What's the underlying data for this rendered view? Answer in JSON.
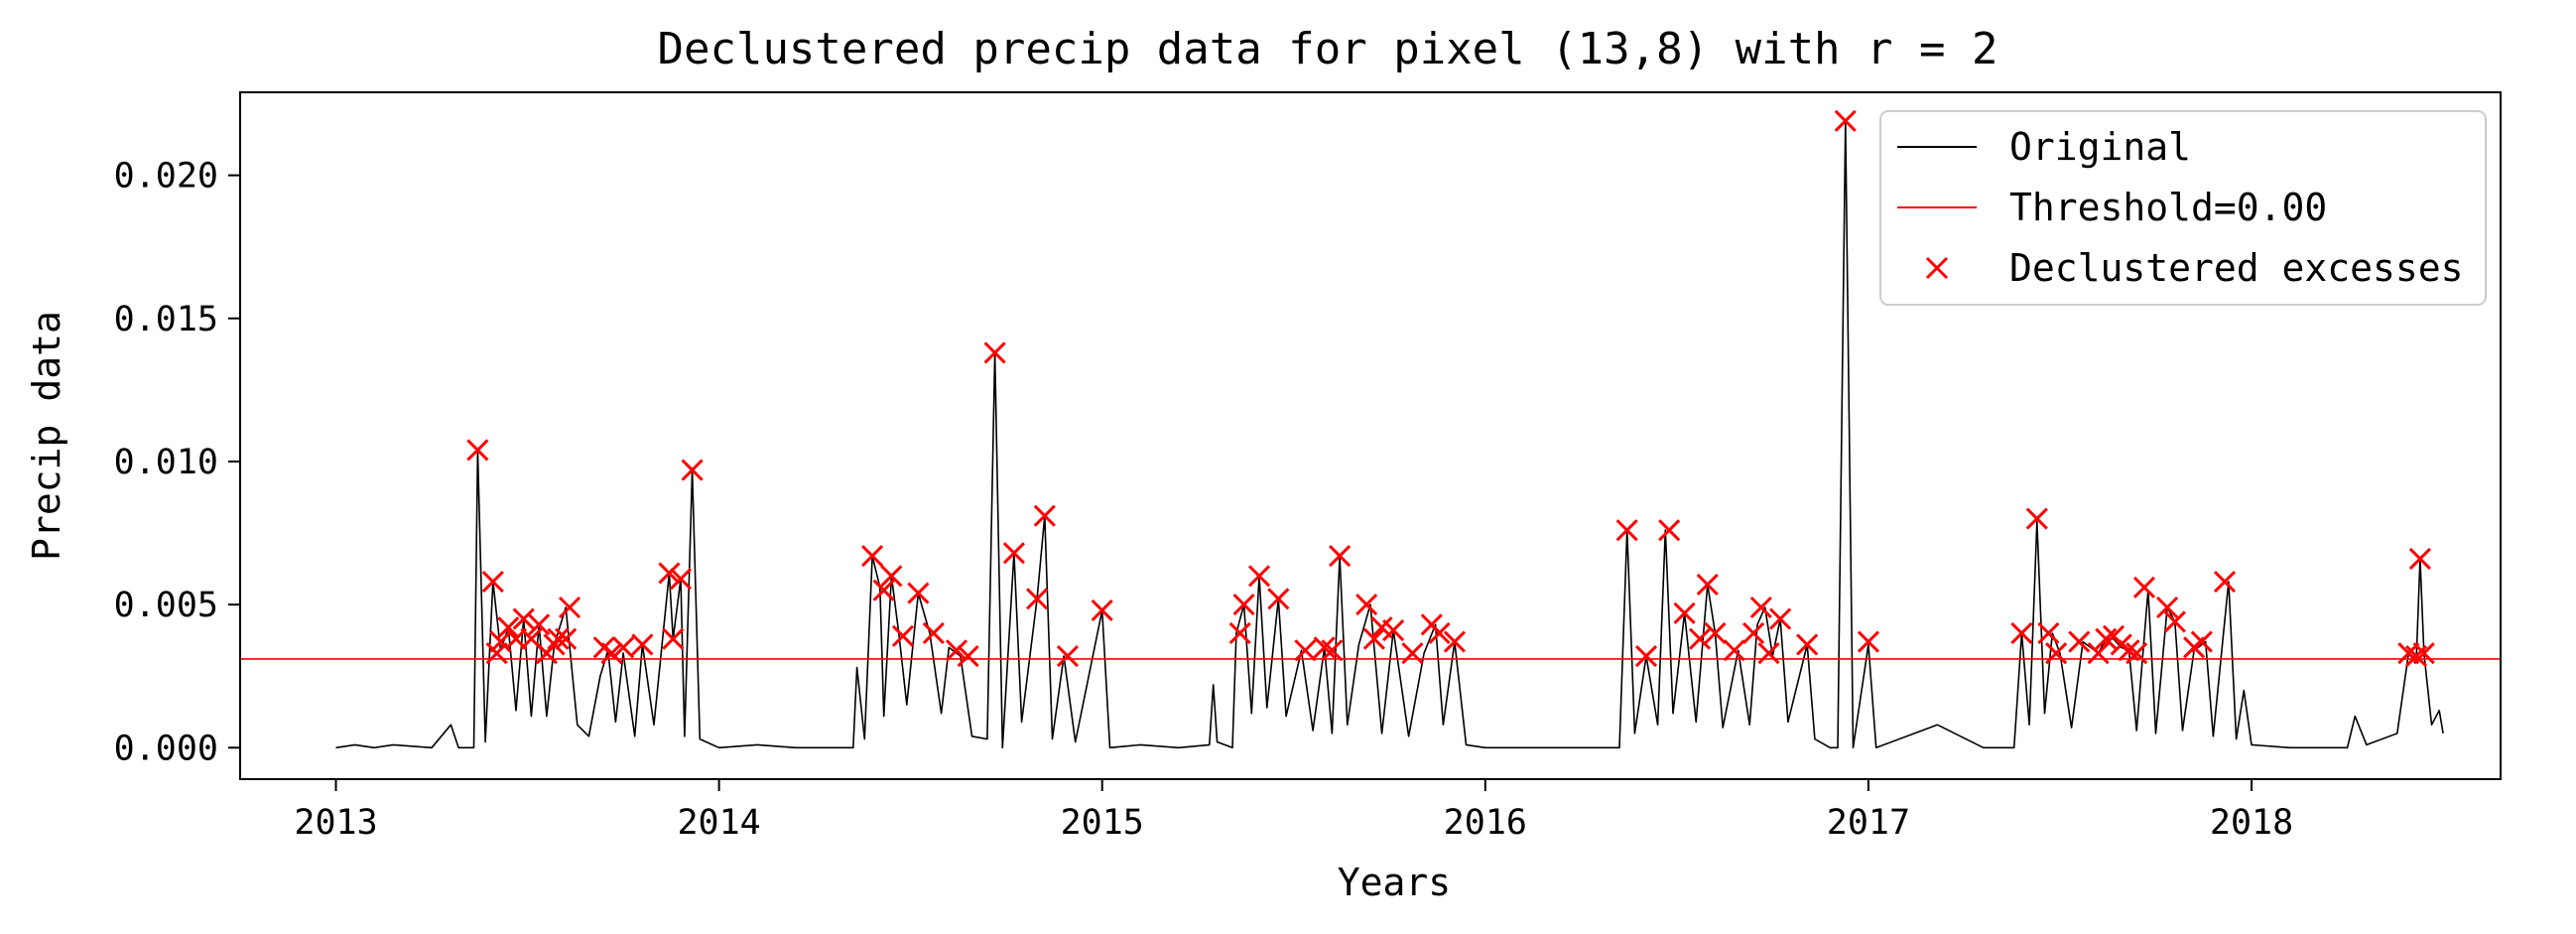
{
  "chart_data": {
    "type": "line",
    "title": "Declustered precip data for pixel (13,8) with r = 2",
    "xlabel": "Years",
    "ylabel": "Precip data",
    "xlim": [
      2012.75,
      2018.65
    ],
    "ylim": [
      -0.0011,
      0.0229
    ],
    "x_ticks": [
      {
        "value": 2013,
        "label": "2013"
      },
      {
        "value": 2014,
        "label": "2014"
      },
      {
        "value": 2015,
        "label": "2015"
      },
      {
        "value": 2016,
        "label": "2016"
      },
      {
        "value": 2017,
        "label": "2017"
      },
      {
        "value": 2018,
        "label": "2018"
      }
    ],
    "y_ticks": [
      {
        "value": 0.0,
        "label": "0.000"
      },
      {
        "value": 0.005,
        "label": "0.005"
      },
      {
        "value": 0.01,
        "label": "0.010"
      },
      {
        "value": 0.015,
        "label": "0.015"
      },
      {
        "value": 0.02,
        "label": "0.020"
      }
    ],
    "grid": false,
    "legend_placement": "top-right",
    "legend": [
      {
        "key": "original",
        "label": "Original",
        "kind": "line",
        "color": "#000000"
      },
      {
        "key": "threshold",
        "label": "Threshold=0.00",
        "kind": "line",
        "color": "#ff0000"
      },
      {
        "key": "excesses",
        "label": "Declustered excesses",
        "kind": "marker",
        "color": "#ff0000"
      }
    ],
    "threshold": 0.0031,
    "series": [
      {
        "key": "original",
        "color": "#000000",
        "points": [
          [
            2013.0,
            0.0
          ],
          [
            2013.05,
            0.0001
          ],
          [
            2013.1,
            0.0
          ],
          [
            2013.15,
            0.0001
          ],
          [
            2013.25,
            0.0
          ],
          [
            2013.3,
            0.0008
          ],
          [
            2013.32,
            0.0
          ],
          [
            2013.36,
            0.0
          ],
          [
            2013.37,
            0.0104
          ],
          [
            2013.39,
            0.0002
          ],
          [
            2013.41,
            0.0058
          ],
          [
            2013.43,
            0.0034
          ],
          [
            2013.45,
            0.0042
          ],
          [
            2013.47,
            0.0013
          ],
          [
            2013.49,
            0.0045
          ],
          [
            2013.51,
            0.0011
          ],
          [
            2013.53,
            0.0043
          ],
          [
            2013.55,
            0.0011
          ],
          [
            2013.57,
            0.0036
          ],
          [
            2013.6,
            0.0049
          ],
          [
            2013.63,
            0.0008
          ],
          [
            2013.66,
            0.0004
          ],
          [
            2013.69,
            0.0025
          ],
          [
            2013.71,
            0.0034
          ],
          [
            2013.73,
            0.0009
          ],
          [
            2013.75,
            0.0033
          ],
          [
            2013.78,
            0.0004
          ],
          [
            2013.8,
            0.0036
          ],
          [
            2013.83,
            0.0008
          ],
          [
            2013.87,
            0.0061
          ],
          [
            2013.88,
            0.0038
          ],
          [
            2013.9,
            0.0059
          ],
          [
            2013.91,
            0.0004
          ],
          [
            2013.93,
            0.0097
          ],
          [
            2013.95,
            0.0003
          ],
          [
            2014.0,
            0.0
          ],
          [
            2014.1,
            0.0001
          ],
          [
            2014.2,
            0.0
          ],
          [
            2014.35,
            0.0
          ],
          [
            2014.36,
            0.0028
          ],
          [
            2014.38,
            0.0003
          ],
          [
            2014.4,
            0.0067
          ],
          [
            2014.42,
            0.0056
          ],
          [
            2014.43,
            0.0011
          ],
          [
            2014.45,
            0.006
          ],
          [
            2014.47,
            0.0039
          ],
          [
            2014.49,
            0.0015
          ],
          [
            2014.52,
            0.0054
          ],
          [
            2014.55,
            0.004
          ],
          [
            2014.58,
            0.0012
          ],
          [
            2014.6,
            0.0035
          ],
          [
            2014.63,
            0.0032
          ],
          [
            2014.66,
            0.0004
          ],
          [
            2014.7,
            0.0003
          ],
          [
            2014.72,
            0.0138
          ],
          [
            2014.74,
            0.0
          ],
          [
            2014.77,
            0.0068
          ],
          [
            2014.79,
            0.0009
          ],
          [
            2014.83,
            0.0052
          ],
          [
            2014.85,
            0.0081
          ],
          [
            2014.87,
            0.0003
          ],
          [
            2014.9,
            0.0032
          ],
          [
            2014.93,
            0.0002
          ],
          [
            2015.0,
            0.0048
          ],
          [
            2015.02,
            0.0
          ],
          [
            2015.1,
            0.0001
          ],
          [
            2015.2,
            0.0
          ],
          [
            2015.28,
            0.0001
          ],
          [
            2015.29,
            0.0022
          ],
          [
            2015.3,
            0.0002
          ],
          [
            2015.34,
            0.0
          ],
          [
            2015.35,
            0.004
          ],
          [
            2015.37,
            0.005
          ],
          [
            2015.39,
            0.0012
          ],
          [
            2015.41,
            0.006
          ],
          [
            2015.43,
            0.0014
          ],
          [
            2015.46,
            0.0052
          ],
          [
            2015.48,
            0.0011
          ],
          [
            2015.52,
            0.0034
          ],
          [
            2015.55,
            0.0006
          ],
          [
            2015.58,
            0.0035
          ],
          [
            2015.6,
            0.0005
          ],
          [
            2015.62,
            0.0067
          ],
          [
            2015.64,
            0.0008
          ],
          [
            2015.67,
            0.0036
          ],
          [
            2015.7,
            0.005
          ],
          [
            2015.73,
            0.0005
          ],
          [
            2015.76,
            0.0041
          ],
          [
            2015.8,
            0.0004
          ],
          [
            2015.84,
            0.0033
          ],
          [
            2015.87,
            0.0043
          ],
          [
            2015.89,
            0.0008
          ],
          [
            2015.92,
            0.0037
          ],
          [
            2015.95,
            0.0001
          ],
          [
            2016.0,
            0.0
          ],
          [
            2016.2,
            0.0
          ],
          [
            2016.35,
            0.0
          ],
          [
            2016.37,
            0.0076
          ],
          [
            2016.39,
            0.0005
          ],
          [
            2016.42,
            0.0032
          ],
          [
            2016.45,
            0.0008
          ],
          [
            2016.47,
            0.0076
          ],
          [
            2016.49,
            0.0012
          ],
          [
            2016.52,
            0.0047
          ],
          [
            2016.55,
            0.0009
          ],
          [
            2016.58,
            0.0057
          ],
          [
            2016.6,
            0.004
          ],
          [
            2016.62,
            0.0007
          ],
          [
            2016.66,
            0.0034
          ],
          [
            2016.69,
            0.0008
          ],
          [
            2016.71,
            0.0043
          ],
          [
            2016.73,
            0.0049
          ],
          [
            2016.75,
            0.0032
          ],
          [
            2016.77,
            0.0045
          ],
          [
            2016.79,
            0.0009
          ],
          [
            2016.84,
            0.0036
          ],
          [
            2016.86,
            0.0003
          ],
          [
            2016.9,
            0.0
          ],
          [
            2016.92,
            0.0
          ],
          [
            2016.94,
            0.0219
          ],
          [
            2016.96,
            0.0
          ],
          [
            2017.0,
            0.0036
          ],
          [
            2017.02,
            0.0
          ],
          [
            2017.18,
            0.0008
          ],
          [
            2017.3,
            0.0
          ],
          [
            2017.38,
            0.0
          ],
          [
            2017.4,
            0.004
          ],
          [
            2017.42,
            0.0008
          ],
          [
            2017.44,
            0.0079
          ],
          [
            2017.46,
            0.0012
          ],
          [
            2017.48,
            0.004
          ],
          [
            2017.5,
            0.0033
          ],
          [
            2017.53,
            0.0007
          ],
          [
            2017.56,
            0.0037
          ],
          [
            2017.6,
            0.0033
          ],
          [
            2017.62,
            0.0038
          ],
          [
            2017.64,
            0.0038
          ],
          [
            2017.66,
            0.0035
          ],
          [
            2017.68,
            0.0034
          ],
          [
            2017.7,
            0.0006
          ],
          [
            2017.73,
            0.0055
          ],
          [
            2017.75,
            0.0005
          ],
          [
            2017.78,
            0.0049
          ],
          [
            2017.8,
            0.0044
          ],
          [
            2017.82,
            0.0006
          ],
          [
            2017.85,
            0.0034
          ],
          [
            2017.88,
            0.0037
          ],
          [
            2017.9,
            0.0004
          ],
          [
            2017.94,
            0.0058
          ],
          [
            2017.96,
            0.0003
          ],
          [
            2017.98,
            0.002
          ],
          [
            2018.0,
            0.0001
          ],
          [
            2018.1,
            0.0
          ],
          [
            2018.25,
            0.0
          ],
          [
            2018.27,
            0.0011
          ],
          [
            2018.3,
            0.0001
          ],
          [
            2018.38,
            0.0005
          ],
          [
            2018.41,
            0.0033
          ],
          [
            2018.43,
            0.0031
          ],
          [
            2018.44,
            0.0066
          ],
          [
            2018.45,
            0.0033
          ],
          [
            2018.47,
            0.0008
          ],
          [
            2018.49,
            0.0013
          ],
          [
            2018.5,
            0.0005
          ]
        ]
      },
      {
        "key": "excesses",
        "color": "#ff0000",
        "points": [
          [
            2013.37,
            0.0104
          ],
          [
            2013.41,
            0.0058
          ],
          [
            2013.42,
            0.0033
          ],
          [
            2013.43,
            0.0037
          ],
          [
            2013.45,
            0.0042
          ],
          [
            2013.47,
            0.0038
          ],
          [
            2013.49,
            0.0045
          ],
          [
            2013.51,
            0.0038
          ],
          [
            2013.53,
            0.0043
          ],
          [
            2013.55,
            0.0033
          ],
          [
            2013.57,
            0.0036
          ],
          [
            2013.58,
            0.0038
          ],
          [
            2013.6,
            0.0038
          ],
          [
            2013.61,
            0.0049
          ],
          [
            2013.7,
            0.0035
          ],
          [
            2013.72,
            0.0033
          ],
          [
            2013.75,
            0.0035
          ],
          [
            2013.8,
            0.0036
          ],
          [
            2013.87,
            0.0061
          ],
          [
            2013.88,
            0.0038
          ],
          [
            2013.9,
            0.0059
          ],
          [
            2013.93,
            0.0097
          ],
          [
            2014.4,
            0.0067
          ],
          [
            2014.43,
            0.0055
          ],
          [
            2014.45,
            0.006
          ],
          [
            2014.48,
            0.0039
          ],
          [
            2014.52,
            0.0054
          ],
          [
            2014.56,
            0.004
          ],
          [
            2014.62,
            0.0034
          ],
          [
            2014.65,
            0.0032
          ],
          [
            2014.72,
            0.0138
          ],
          [
            2014.77,
            0.0068
          ],
          [
            2014.83,
            0.0052
          ],
          [
            2014.85,
            0.0081
          ],
          [
            2014.91,
            0.0032
          ],
          [
            2015.0,
            0.0048
          ],
          [
            2015.37,
            0.005
          ],
          [
            2015.36,
            0.004
          ],
          [
            2015.41,
            0.006
          ],
          [
            2015.46,
            0.0052
          ],
          [
            2015.53,
            0.0034
          ],
          [
            2015.58,
            0.0035
          ],
          [
            2015.6,
            0.0034
          ],
          [
            2015.62,
            0.0067
          ],
          [
            2015.69,
            0.005
          ],
          [
            2015.71,
            0.0038
          ],
          [
            2015.73,
            0.0042
          ],
          [
            2015.76,
            0.0041
          ],
          [
            2015.81,
            0.0033
          ],
          [
            2015.86,
            0.0043
          ],
          [
            2015.88,
            0.004
          ],
          [
            2015.92,
            0.0037
          ],
          [
            2016.37,
            0.0076
          ],
          [
            2016.42,
            0.0032
          ],
          [
            2016.48,
            0.0076
          ],
          [
            2016.52,
            0.0047
          ],
          [
            2016.56,
            0.0038
          ],
          [
            2016.58,
            0.0057
          ],
          [
            2016.6,
            0.004
          ],
          [
            2016.65,
            0.0034
          ],
          [
            2016.7,
            0.004
          ],
          [
            2016.72,
            0.0049
          ],
          [
            2016.74,
            0.0033
          ],
          [
            2016.77,
            0.0045
          ],
          [
            2016.84,
            0.0036
          ],
          [
            2016.94,
            0.0219
          ],
          [
            2017.0,
            0.0037
          ],
          [
            2017.4,
            0.004
          ],
          [
            2017.44,
            0.008
          ],
          [
            2017.47,
            0.004
          ],
          [
            2017.49,
            0.0033
          ],
          [
            2017.55,
            0.0037
          ],
          [
            2017.6,
            0.0033
          ],
          [
            2017.62,
            0.0038
          ],
          [
            2017.64,
            0.0039
          ],
          [
            2017.66,
            0.0036
          ],
          [
            2017.68,
            0.0034
          ],
          [
            2017.7,
            0.0033
          ],
          [
            2017.72,
            0.0056
          ],
          [
            2017.78,
            0.0049
          ],
          [
            2017.8,
            0.0044
          ],
          [
            2017.85,
            0.0035
          ],
          [
            2017.87,
            0.0037
          ],
          [
            2017.93,
            0.0058
          ],
          [
            2018.41,
            0.0033
          ],
          [
            2018.43,
            0.0032
          ],
          [
            2018.44,
            0.0066
          ],
          [
            2018.45,
            0.0033
          ]
        ]
      }
    ]
  }
}
